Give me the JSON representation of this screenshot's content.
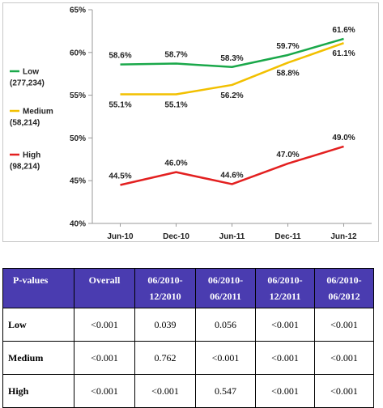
{
  "chart_data": {
    "type": "line",
    "categories": [
      "Jun-10",
      "Dec-10",
      "Jun-11",
      "Dec-11",
      "Jun-12"
    ],
    "ylim": [
      40,
      65
    ],
    "yticks": [
      "40%",
      "45%",
      "50%",
      "55%",
      "60%",
      "65%"
    ],
    "ytick_values": [
      40,
      45,
      50,
      55,
      60,
      65
    ],
    "grid": false,
    "legend_position": "left",
    "series": [
      {
        "name": "Low",
        "legend_count": "(277,234)",
        "color": "#1aa84a",
        "values": [
          58.6,
          58.7,
          58.3,
          59.7,
          61.6
        ],
        "labels": [
          "58.6%",
          "58.7%",
          "58.3%",
          "59.7%",
          "61.6%"
        ],
        "label_side": [
          "above",
          "above",
          "above",
          "above",
          "above"
        ]
      },
      {
        "name": "Medium",
        "legend_count": "(58,214)",
        "color": "#f2c000",
        "values": [
          55.1,
          55.1,
          56.2,
          58.8,
          61.1
        ],
        "labels": [
          "55.1%",
          "55.1%",
          "56.2%",
          "58.8%",
          "61.1%"
        ],
        "label_side": [
          "below",
          "below",
          "below",
          "below",
          "below"
        ]
      },
      {
        "name": "High",
        "legend_count": "(98,214)",
        "color": "#e32020",
        "values": [
          44.5,
          46.0,
          44.6,
          47.0,
          49.0
        ],
        "labels": [
          "44.5%",
          "46.0%",
          "44.6%",
          "47.0%",
          "49.0%"
        ],
        "label_side": [
          "above",
          "above",
          "above",
          "above",
          "above"
        ]
      }
    ]
  },
  "table": {
    "headers": [
      [
        "P-values"
      ],
      [
        "Overall"
      ],
      [
        "06/2010-",
        "12/2010"
      ],
      [
        "06/2010-",
        "06/2011"
      ],
      [
        "06/2010-",
        "12/2011"
      ],
      [
        "06/2010-",
        "06/2012"
      ]
    ],
    "header_color": "#4a3cb0",
    "rows": [
      {
        "label": "Low",
        "values": [
          "<0.001",
          "0.039",
          "0.056",
          "<0.001",
          "<0.001"
        ]
      },
      {
        "label": "Medium",
        "values": [
          "<0.001",
          "0.762",
          "<0.001",
          "<0.001",
          "<0.001"
        ]
      },
      {
        "label": "High",
        "values": [
          "<0.001",
          "<0.001",
          "0.547",
          "<0.001",
          "<0.001"
        ]
      }
    ]
  }
}
